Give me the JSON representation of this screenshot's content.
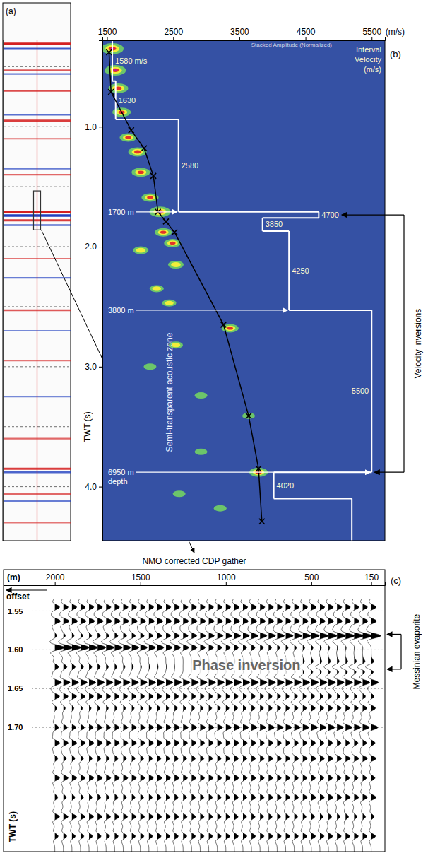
{
  "chart_data": [
    {
      "type": "seismic_section",
      "panel": "(a)",
      "ylim": [
        0.28,
        4.45
      ],
      "yticks": [
        0.5,
        1,
        1.5,
        2,
        2.5,
        3,
        3.5,
        4
      ],
      "grid": true,
      "tick_labels": false,
      "reflectors": [
        {
          "twt": 0.31,
          "amplitude": 1.0
        },
        {
          "twt": 0.35,
          "amplitude": -0.8
        },
        {
          "twt": 0.53,
          "amplitude": 0.6
        },
        {
          "twt": 0.56,
          "amplitude": -0.5
        },
        {
          "twt": 0.7,
          "amplitude": 0.7
        },
        {
          "twt": 0.9,
          "amplitude": -0.6
        },
        {
          "twt": 0.95,
          "amplitude": 0.8
        },
        {
          "twt": 1.1,
          "amplitude": 0.4
        },
        {
          "twt": 1.35,
          "amplitude": -0.5
        },
        {
          "twt": 1.4,
          "amplitude": 0.5
        },
        {
          "twt": 1.71,
          "amplitude": 1.0
        },
        {
          "twt": 1.74,
          "amplitude": -1.0
        },
        {
          "twt": 1.78,
          "amplitude": 0.8
        },
        {
          "twt": 1.82,
          "amplitude": -0.6
        },
        {
          "twt": 2.1,
          "amplitude": 0.4
        },
        {
          "twt": 2.26,
          "amplitude": -0.5
        },
        {
          "twt": 2.53,
          "amplitude": 0.6
        },
        {
          "twt": 2.7,
          "amplitude": -0.4
        },
        {
          "twt": 2.95,
          "amplitude": 0.4
        },
        {
          "twt": 3.25,
          "amplitude": -0.4
        },
        {
          "twt": 3.6,
          "amplitude": 0.5
        },
        {
          "twt": 3.85,
          "amplitude": 0.8
        },
        {
          "twt": 3.88,
          "amplitude": -0.7
        },
        {
          "twt": 4.06,
          "amplitude": 0.5
        },
        {
          "twt": 4.12,
          "amplitude": -0.5
        },
        {
          "twt": 4.3,
          "amplitude": 0.4
        }
      ]
    },
    {
      "type": "velocity_analysis",
      "panel": "(b)",
      "title": "Stacked Amplitude (Normalized)",
      "x_label": "(m/s)",
      "y_label": "TWT (s)",
      "xlim": [
        1430,
        5700
      ],
      "xticks": [
        1500,
        2500,
        3500,
        4500,
        5500
      ],
      "ylim": [
        0.28,
        4.45
      ],
      "yticks": [
        {
          "value": 1,
          "label": "1.0"
        },
        {
          "value": 2,
          "label": "2.0"
        },
        {
          "value": 3,
          "label": "3.0"
        },
        {
          "value": 4,
          "label": "4.0"
        }
      ],
      "semblance": [
        {
          "twt": 0.35,
          "velocity": 1580,
          "strength": 1.0
        },
        {
          "twt": 0.53,
          "velocity": 1625,
          "strength": 0.9
        },
        {
          "twt": 0.68,
          "velocity": 1670,
          "strength": 0.8
        },
        {
          "twt": 0.88,
          "velocity": 1720,
          "strength": 0.7
        },
        {
          "twt": 1.09,
          "velocity": 1820,
          "strength": 0.6
        },
        {
          "twt": 1.21,
          "velocity": 1960,
          "strength": 0.7
        },
        {
          "twt": 1.38,
          "velocity": 2010,
          "strength": 0.7
        },
        {
          "twt": 1.59,
          "velocity": 2150,
          "strength": 0.6
        },
        {
          "twt": 1.71,
          "velocity": 2300,
          "strength": 0.9
        },
        {
          "twt": 1.88,
          "velocity": 2350,
          "strength": 0.6
        },
        {
          "twt": 1.97,
          "velocity": 2490,
          "strength": 0.6
        },
        {
          "twt": 2.03,
          "velocity": 2010,
          "strength": 0.5
        },
        {
          "twt": 2.15,
          "velocity": 2540,
          "strength": 0.5
        },
        {
          "twt": 2.35,
          "velocity": 2250,
          "strength": 0.4
        },
        {
          "twt": 2.47,
          "velocity": 2440,
          "strength": 0.4
        },
        {
          "twt": 2.68,
          "velocity": 3360,
          "strength": 0.6
        },
        {
          "twt": 2.82,
          "velocity": 2540,
          "strength": 0.4
        },
        {
          "twt": 3.0,
          "velocity": 2150,
          "strength": 0.3
        },
        {
          "twt": 3.24,
          "velocity": 2920,
          "strength": 0.3
        },
        {
          "twt": 3.41,
          "velocity": 3640,
          "strength": 0.3
        },
        {
          "twt": 3.71,
          "velocity": 2920,
          "strength": 0.3
        },
        {
          "twt": 3.88,
          "velocity": 3790,
          "strength": 0.7
        },
        {
          "twt": 4.06,
          "velocity": 2590,
          "strength": 0.3
        },
        {
          "twt": 4.18,
          "velocity": 3210,
          "strength": 0.3
        }
      ],
      "picks": {
        "twt": [
          0.38,
          0.71,
          1.03,
          1.18,
          1.41,
          1.71,
          1.79,
          1.88,
          2.65,
          3.41,
          3.85,
          4.29
        ],
        "velocity": [
          1530,
          1560,
          1865,
          2060,
          2200,
          2270,
          2390,
          2520,
          3260,
          3640,
          3790,
          3840
        ]
      },
      "interval_title": [
        "Interval",
        "Velocity",
        "(m/s)"
      ],
      "interval_velocity": [
        {
          "top": 0.28,
          "bottom": 0.62,
          "velocity": 1580,
          "label": "1580 m/s"
        },
        {
          "top": 0.62,
          "bottom": 0.94,
          "velocity": 1630,
          "label": "1630"
        },
        {
          "top": 0.94,
          "bottom": 1.71,
          "velocity": 2580,
          "label": "2580"
        },
        {
          "top": 1.71,
          "bottom": 1.76,
          "velocity": 4700,
          "label": "4700"
        },
        {
          "top": 1.76,
          "bottom": 1.87,
          "velocity": 3850,
          "label": "3850"
        },
        {
          "top": 1.87,
          "bottom": 2.53,
          "velocity": 4250,
          "label": "4250"
        },
        {
          "top": 2.53,
          "bottom": 3.88,
          "velocity": 5500,
          "label": "5500"
        },
        {
          "top": 3.88,
          "bottom": 4.1,
          "velocity": 4020,
          "label": "4020"
        },
        {
          "top": 4.1,
          "bottom": 4.45,
          "velocity": 5200
        }
      ],
      "depth_markers": [
        {
          "twt": 1.71,
          "lines": [
            "1700 m"
          ]
        },
        {
          "twt": 2.53,
          "lines": [
            "3800 m"
          ]
        },
        {
          "twt": 3.88,
          "lines": [
            "6950 m",
            "depth"
          ]
        }
      ],
      "zone_label": "Semi-transparent acoustic zone",
      "inversions": {
        "label": "Velocity inversions",
        "twt": [
          1.735,
          3.88
        ]
      }
    },
    {
      "type": "cdp_gather",
      "panel": "(c)",
      "title": "NMO corrected CDP gather",
      "x_label": "(m)",
      "x_direction_label": "offset",
      "y_label": "TWT (s)",
      "xlim": [
        2300,
        70
      ],
      "xticks": [
        2000,
        1500,
        1000,
        500,
        150
      ],
      "ylim": [
        1.535,
        1.86
      ],
      "yticks": [
        1.55,
        {
          "value": 1.6,
          "label": "1.60"
        },
        1.65,
        {
          "value": 1.7,
          "label": "1.70"
        }
      ],
      "grid": true,
      "traces": {
        "first": 150,
        "last": 2000,
        "interval": 50
      },
      "events": [
        {
          "twt": 1.545,
          "near_amplitude": 0.5,
          "far_amplitude": 0.5
        },
        {
          "twt": 1.563,
          "near_amplitude": 0.55,
          "far_amplitude": 0.6
        },
        {
          "twt": 1.582,
          "near_amplitude": 1.0,
          "far_amplitude": 0.2
        },
        {
          "twt": 1.597,
          "near_amplitude": 0.0,
          "far_amplitude": 1.0
        },
        {
          "twt": 1.622,
          "near_amplitude": -0.6,
          "far_amplitude": 0.4
        },
        {
          "twt": 1.642,
          "near_amplitude": 0.75,
          "far_amplitude": 0.7
        },
        {
          "twt": 1.66,
          "near_amplitude": 0.3,
          "far_amplitude": 0.5
        },
        {
          "twt": 1.675,
          "near_amplitude": 0.45,
          "far_amplitude": 0.2
        },
        {
          "twt": 1.7,
          "near_amplitude": 0.7,
          "far_amplitude": 0.4
        },
        {
          "twt": 1.72,
          "near_amplitude": 0.4,
          "far_amplitude": 0.5
        },
        {
          "twt": 1.74,
          "near_amplitude": 0.5,
          "far_amplitude": 0.3
        },
        {
          "twt": 1.765,
          "near_amplitude": 0.4,
          "far_amplitude": 0.5
        },
        {
          "twt": 1.79,
          "near_amplitude": 0.5,
          "far_amplitude": 0.3
        },
        {
          "twt": 1.815,
          "near_amplitude": 0.3,
          "far_amplitude": 0.5
        },
        {
          "twt": 1.84,
          "near_amplitude": 0.45,
          "far_amplitude": 0.35
        }
      ],
      "annotation": {
        "text": "Phase inversion",
        "twt": 1.62,
        "offset": 880
      },
      "bracket": {
        "label": "Messinian evaporite",
        "twt": [
          1.58,
          1.625
        ]
      }
    }
  ]
}
